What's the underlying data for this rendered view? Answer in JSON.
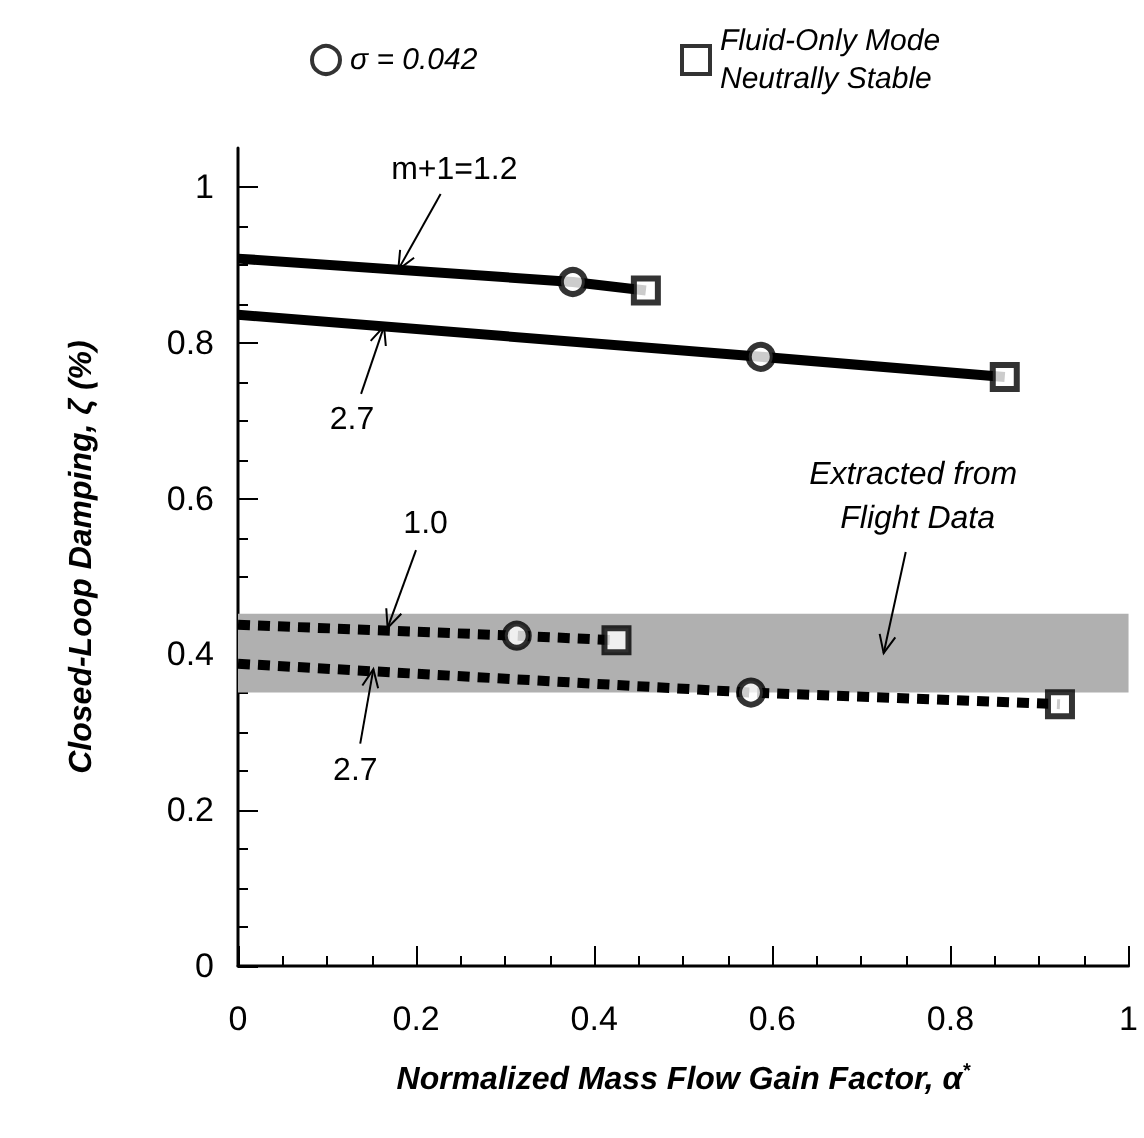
{
  "chart_data": {
    "type": "line",
    "xlabel": "Normalized Mass Flow Gain Factor, α$^{*}$",
    "ylabel": "Closed-Loop Damping, ζ (%)",
    "xlim": [
      0,
      1
    ],
    "ylim": [
      0,
      1.05
    ],
    "xticks": [
      0,
      0.2,
      0.4,
      0.6,
      0.8,
      1
    ],
    "yticks": [
      0,
      0.2,
      0.4,
      0.6,
      0.8,
      1
    ],
    "grid": false,
    "legend": "top",
    "series": [
      {
        "color": "#000000",
        "line_style": "solid",
        "marker": "none",
        "x": [
          0,
          0.376,
          0.458
        ],
        "values": [
          0.908,
          0.878,
          0.867
        ]
      },
      {
        "color": "#000000",
        "line_style": "solid",
        "marker": "none",
        "x": [
          0,
          0.587,
          0.861
        ],
        "values": [
          0.836,
          0.782,
          0.756
        ]
      },
      {
        "color": "#000000",
        "line_style": "dashed",
        "marker": "none",
        "x": [
          0,
          0.313,
          0.425
        ],
        "values": [
          0.438,
          0.424,
          0.418
        ]
      },
      {
        "color": "#000000",
        "line_style": "dashed",
        "marker": "none",
        "x": [
          0,
          0.576,
          0.923
        ],
        "values": [
          0.388,
          0.351,
          0.336
        ]
      },
      {
        "type": "scatter",
        "name": "σ = 0.042",
        "color": "#000000",
        "marker": "circle",
        "x": [
          0.376,
          0.587,
          0.313,
          0.576
        ],
        "values": [
          0.878,
          0.782,
          0.424,
          0.351
        ]
      },
      {
        "type": "scatter",
        "name": "Fluid-Only Mode Neutrally Stable",
        "color": "#000000",
        "marker": "square",
        "x": [
          0.458,
          0.861,
          0.425,
          0.923
        ],
        "values": [
          0.867,
          0.756,
          0.418,
          0.336
        ]
      }
    ],
    "bands": [
      {
        "axis": "y",
        "from": 0.351,
        "to": 0.452,
        "color": "#b0b0b0",
        "label": "Extracted from Flight Data"
      }
    ],
    "annotations": [
      {
        "text": "m+1=1.2",
        "x": 0.18,
        "y": 0.894
      },
      {
        "text": "2.7",
        "x": 0.164,
        "y": 0.821
      },
      {
        "text": "1.0",
        "x": 0.168,
        "y": 0.434
      },
      {
        "text": "2.7",
        "x": 0.152,
        "y": 0.381
      }
    ]
  }
}
